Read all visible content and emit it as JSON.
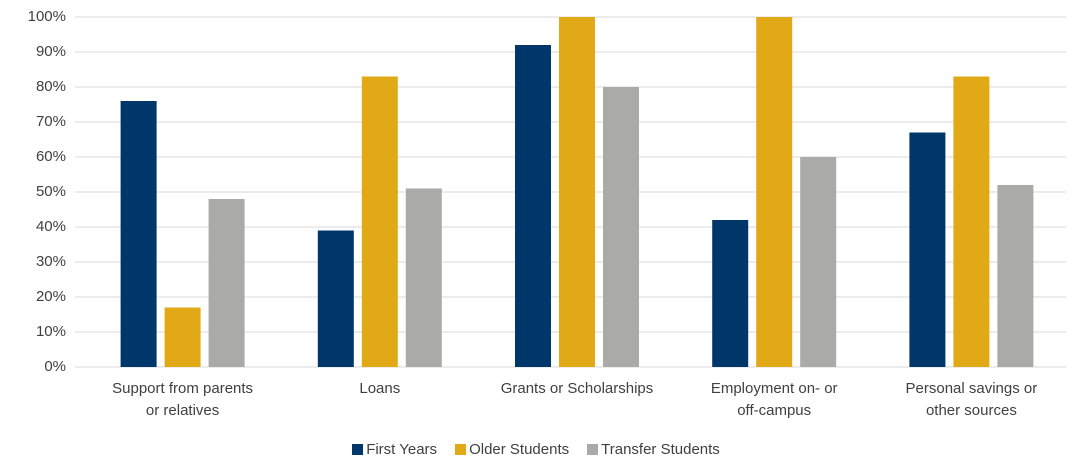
{
  "chart_data": {
    "type": "bar",
    "categories": [
      "Support from parents\nor relatives",
      "Loans",
      "Grants or Scholarships",
      "Employment on- or\noff-campus",
      "Personal savings or\nother sources"
    ],
    "series": [
      {
        "name": "First Years",
        "color": "#00376b",
        "values": [
          76,
          39,
          92,
          42,
          67
        ]
      },
      {
        "name": "Older Students",
        "color": "#e0a915",
        "values": [
          17,
          83,
          100,
          100,
          83
        ]
      },
      {
        "name": "Transfer Students",
        "color": "#aaaba6",
        "values": [
          48,
          51,
          80,
          60,
          52
        ]
      }
    ],
    "ylim": [
      0,
      100
    ],
    "yticks": [
      {
        "value": 0,
        "label": "0%"
      },
      {
        "value": 10,
        "label": "10%"
      },
      {
        "value": 20,
        "label": "20%"
      },
      {
        "value": 30,
        "label": "30%"
      },
      {
        "value": 40,
        "label": "40%"
      },
      {
        "value": 50,
        "label": "50%"
      },
      {
        "value": 60,
        "label": "60%"
      },
      {
        "value": 70,
        "label": "70%"
      },
      {
        "value": 80,
        "label": "80%"
      },
      {
        "value": 90,
        "label": "90%"
      },
      {
        "value": 100,
        "label": "100%"
      }
    ],
    "grid": true,
    "legend": "bottom"
  }
}
